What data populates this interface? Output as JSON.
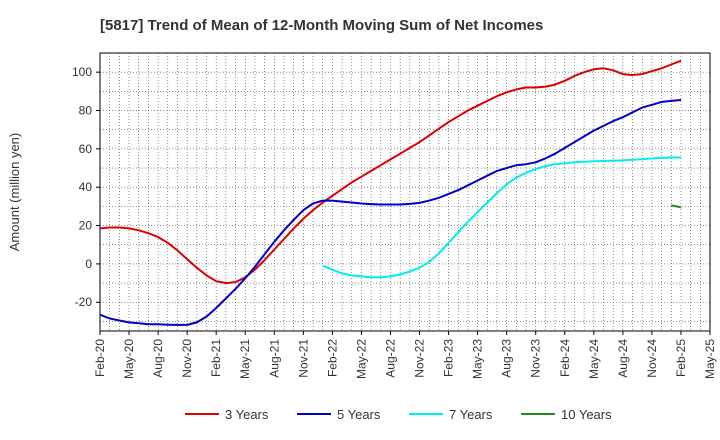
{
  "chart_data": {
    "type": "line",
    "title": "[5817]  Trend of Mean of 12-Month Moving Sum of Net Incomes",
    "ylabel": "Amount (million yen)",
    "xlabel": "",
    "ylim": [
      -35,
      110
    ],
    "yticks": [
      -20,
      0,
      20,
      40,
      60,
      80,
      100
    ],
    "xlim": [
      "2020-02",
      "2025-05"
    ],
    "xticks": [
      "Feb-20",
      "May-20",
      "Aug-20",
      "Nov-20",
      "Feb-21",
      "May-21",
      "Aug-21",
      "Nov-21",
      "Feb-22",
      "May-22",
      "Aug-22",
      "Nov-22",
      "Feb-23",
      "May-23",
      "Aug-23",
      "Nov-23",
      "Feb-24",
      "May-24",
      "Aug-24",
      "Nov-24",
      "Feb-25",
      "May-25"
    ],
    "grid": true,
    "legend": "bottom",
    "series": [
      {
        "name": "3 Years",
        "color": "#dd0000",
        "points": [
          [
            "2020-02",
            18.5
          ],
          [
            "2020-03",
            19.0
          ],
          [
            "2020-04",
            19.0
          ],
          [
            "2020-05",
            18.5
          ],
          [
            "2020-06",
            17.5
          ],
          [
            "2020-07",
            16.0
          ],
          [
            "2020-08",
            14.0
          ],
          [
            "2020-09",
            11.0
          ],
          [
            "2020-10",
            7.0
          ],
          [
            "2020-11",
            2.5
          ],
          [
            "2020-12",
            -2.0
          ],
          [
            "2021-01",
            -6.0
          ],
          [
            "2021-02",
            -9.0
          ],
          [
            "2021-03",
            -10.0
          ],
          [
            "2021-04",
            -9.5
          ],
          [
            "2021-05",
            -7.0
          ],
          [
            "2021-06",
            -3.0
          ],
          [
            "2021-07",
            2.0
          ],
          [
            "2021-08",
            7.5
          ],
          [
            "2021-09",
            13.0
          ],
          [
            "2021-10",
            18.5
          ],
          [
            "2021-11",
            23.5
          ],
          [
            "2021-12",
            28.0
          ],
          [
            "2022-01",
            32.0
          ],
          [
            "2022-02",
            35.5
          ],
          [
            "2022-03",
            39.0
          ],
          [
            "2022-04",
            42.5
          ],
          [
            "2022-05",
            45.5
          ],
          [
            "2022-06",
            48.5
          ],
          [
            "2022-07",
            51.5
          ],
          [
            "2022-08",
            54.5
          ],
          [
            "2022-09",
            57.5
          ],
          [
            "2022-10",
            60.5
          ],
          [
            "2022-11",
            63.5
          ],
          [
            "2022-12",
            67.0
          ],
          [
            "2023-01",
            70.5
          ],
          [
            "2023-02",
            74.0
          ],
          [
            "2023-03",
            77.0
          ],
          [
            "2023-04",
            80.0
          ],
          [
            "2023-05",
            82.5
          ],
          [
            "2023-06",
            85.0
          ],
          [
            "2023-07",
            87.5
          ],
          [
            "2023-08",
            89.5
          ],
          [
            "2023-09",
            91.0
          ],
          [
            "2023-10",
            92.0
          ],
          [
            "2023-11",
            92.0
          ],
          [
            "2023-12",
            92.5
          ],
          [
            "2024-01",
            93.5
          ],
          [
            "2024-02",
            95.5
          ],
          [
            "2024-03",
            98.0
          ],
          [
            "2024-04",
            100.0
          ],
          [
            "2024-05",
            101.5
          ],
          [
            "2024-06",
            102.0
          ],
          [
            "2024-07",
            101.0
          ],
          [
            "2024-08",
            99.0
          ],
          [
            "2024-09",
            98.5
          ],
          [
            "2024-10",
            99.0
          ],
          [
            "2024-11",
            100.5
          ],
          [
            "2024-12",
            102.0
          ],
          [
            "2025-01",
            104.0
          ],
          [
            "2025-02",
            106.0
          ]
        ]
      },
      {
        "name": "5 Years",
        "color": "#0000cc",
        "points": [
          [
            "2020-02",
            -26.5
          ],
          [
            "2020-03",
            -28.5
          ],
          [
            "2020-04",
            -29.5
          ],
          [
            "2020-05",
            -30.5
          ],
          [
            "2020-06",
            -31.0
          ],
          [
            "2020-07",
            -31.5
          ],
          [
            "2020-08",
            -31.5
          ],
          [
            "2020-09",
            -31.7
          ],
          [
            "2020-10",
            -31.8
          ],
          [
            "2020-11",
            -31.8
          ],
          [
            "2020-12",
            -30.5
          ],
          [
            "2021-01",
            -27.5
          ],
          [
            "2021-02",
            -23.0
          ],
          [
            "2021-03",
            -18.0
          ],
          [
            "2021-04",
            -13.0
          ],
          [
            "2021-05",
            -7.5
          ],
          [
            "2021-06",
            -1.5
          ],
          [
            "2021-07",
            5.0
          ],
          [
            "2021-08",
            11.5
          ],
          [
            "2021-09",
            17.5
          ],
          [
            "2021-10",
            23.0
          ],
          [
            "2021-11",
            28.0
          ],
          [
            "2021-12",
            31.5
          ],
          [
            "2022-01",
            33.0
          ],
          [
            "2022-02",
            33.0
          ],
          [
            "2022-03",
            32.5
          ],
          [
            "2022-04",
            32.0
          ],
          [
            "2022-05",
            31.5
          ],
          [
            "2022-06",
            31.2
          ],
          [
            "2022-07",
            31.0
          ],
          [
            "2022-08",
            31.0
          ],
          [
            "2022-09",
            31.0
          ],
          [
            "2022-10",
            31.3
          ],
          [
            "2022-11",
            31.8
          ],
          [
            "2022-12",
            33.0
          ],
          [
            "2023-01",
            34.5
          ],
          [
            "2023-02",
            36.5
          ],
          [
            "2023-03",
            38.5
          ],
          [
            "2023-04",
            41.0
          ],
          [
            "2023-05",
            43.5
          ],
          [
            "2023-06",
            46.0
          ],
          [
            "2023-07",
            48.5
          ],
          [
            "2023-08",
            50.0
          ],
          [
            "2023-09",
            51.5
          ],
          [
            "2023-10",
            52.0
          ],
          [
            "2023-11",
            53.0
          ],
          [
            "2023-12",
            55.0
          ],
          [
            "2024-01",
            57.5
          ],
          [
            "2024-02",
            60.5
          ],
          [
            "2024-03",
            63.5
          ],
          [
            "2024-04",
            66.5
          ],
          [
            "2024-05",
            69.5
          ],
          [
            "2024-06",
            72.0
          ],
          [
            "2024-07",
            74.5
          ],
          [
            "2024-08",
            76.5
          ],
          [
            "2024-09",
            79.0
          ],
          [
            "2024-10",
            81.5
          ],
          [
            "2024-11",
            83.0
          ],
          [
            "2024-12",
            84.5
          ],
          [
            "2025-01",
            85.0
          ],
          [
            "2025-02",
            85.5
          ]
        ]
      },
      {
        "name": "7 Years",
        "color": "#00eeee",
        "points": [
          [
            "2022-01",
            -1.0
          ],
          [
            "2022-02",
            -3.0
          ],
          [
            "2022-03",
            -5.0
          ],
          [
            "2022-04",
            -6.0
          ],
          [
            "2022-05",
            -6.5
          ],
          [
            "2022-06",
            -7.0
          ],
          [
            "2022-07",
            -7.0
          ],
          [
            "2022-08",
            -6.5
          ],
          [
            "2022-09",
            -5.5
          ],
          [
            "2022-10",
            -4.0
          ],
          [
            "2022-11",
            -2.0
          ],
          [
            "2022-12",
            1.0
          ],
          [
            "2023-01",
            5.5
          ],
          [
            "2023-02",
            11.0
          ],
          [
            "2023-03",
            16.5
          ],
          [
            "2023-04",
            22.0
          ],
          [
            "2023-05",
            27.0
          ],
          [
            "2023-06",
            32.0
          ],
          [
            "2023-07",
            37.0
          ],
          [
            "2023-08",
            41.5
          ],
          [
            "2023-09",
            45.0
          ],
          [
            "2023-10",
            47.5
          ],
          [
            "2023-11",
            49.5
          ],
          [
            "2023-12",
            51.0
          ],
          [
            "2024-01",
            52.0
          ],
          [
            "2024-02",
            52.5
          ],
          [
            "2024-03",
            53.0
          ],
          [
            "2024-04",
            53.3
          ],
          [
            "2024-05",
            53.5
          ],
          [
            "2024-06",
            53.7
          ],
          [
            "2024-07",
            53.8
          ],
          [
            "2024-08",
            54.0
          ],
          [
            "2024-09",
            54.3
          ],
          [
            "2024-10",
            54.6
          ],
          [
            "2024-11",
            55.0
          ],
          [
            "2024-12",
            55.3
          ],
          [
            "2025-01",
            55.5
          ],
          [
            "2025-02",
            55.5
          ]
        ]
      },
      {
        "name": "10 Years",
        "color": "#228822",
        "points": [
          [
            "2025-01",
            30.5
          ],
          [
            "2025-02",
            29.5
          ]
        ]
      }
    ]
  }
}
